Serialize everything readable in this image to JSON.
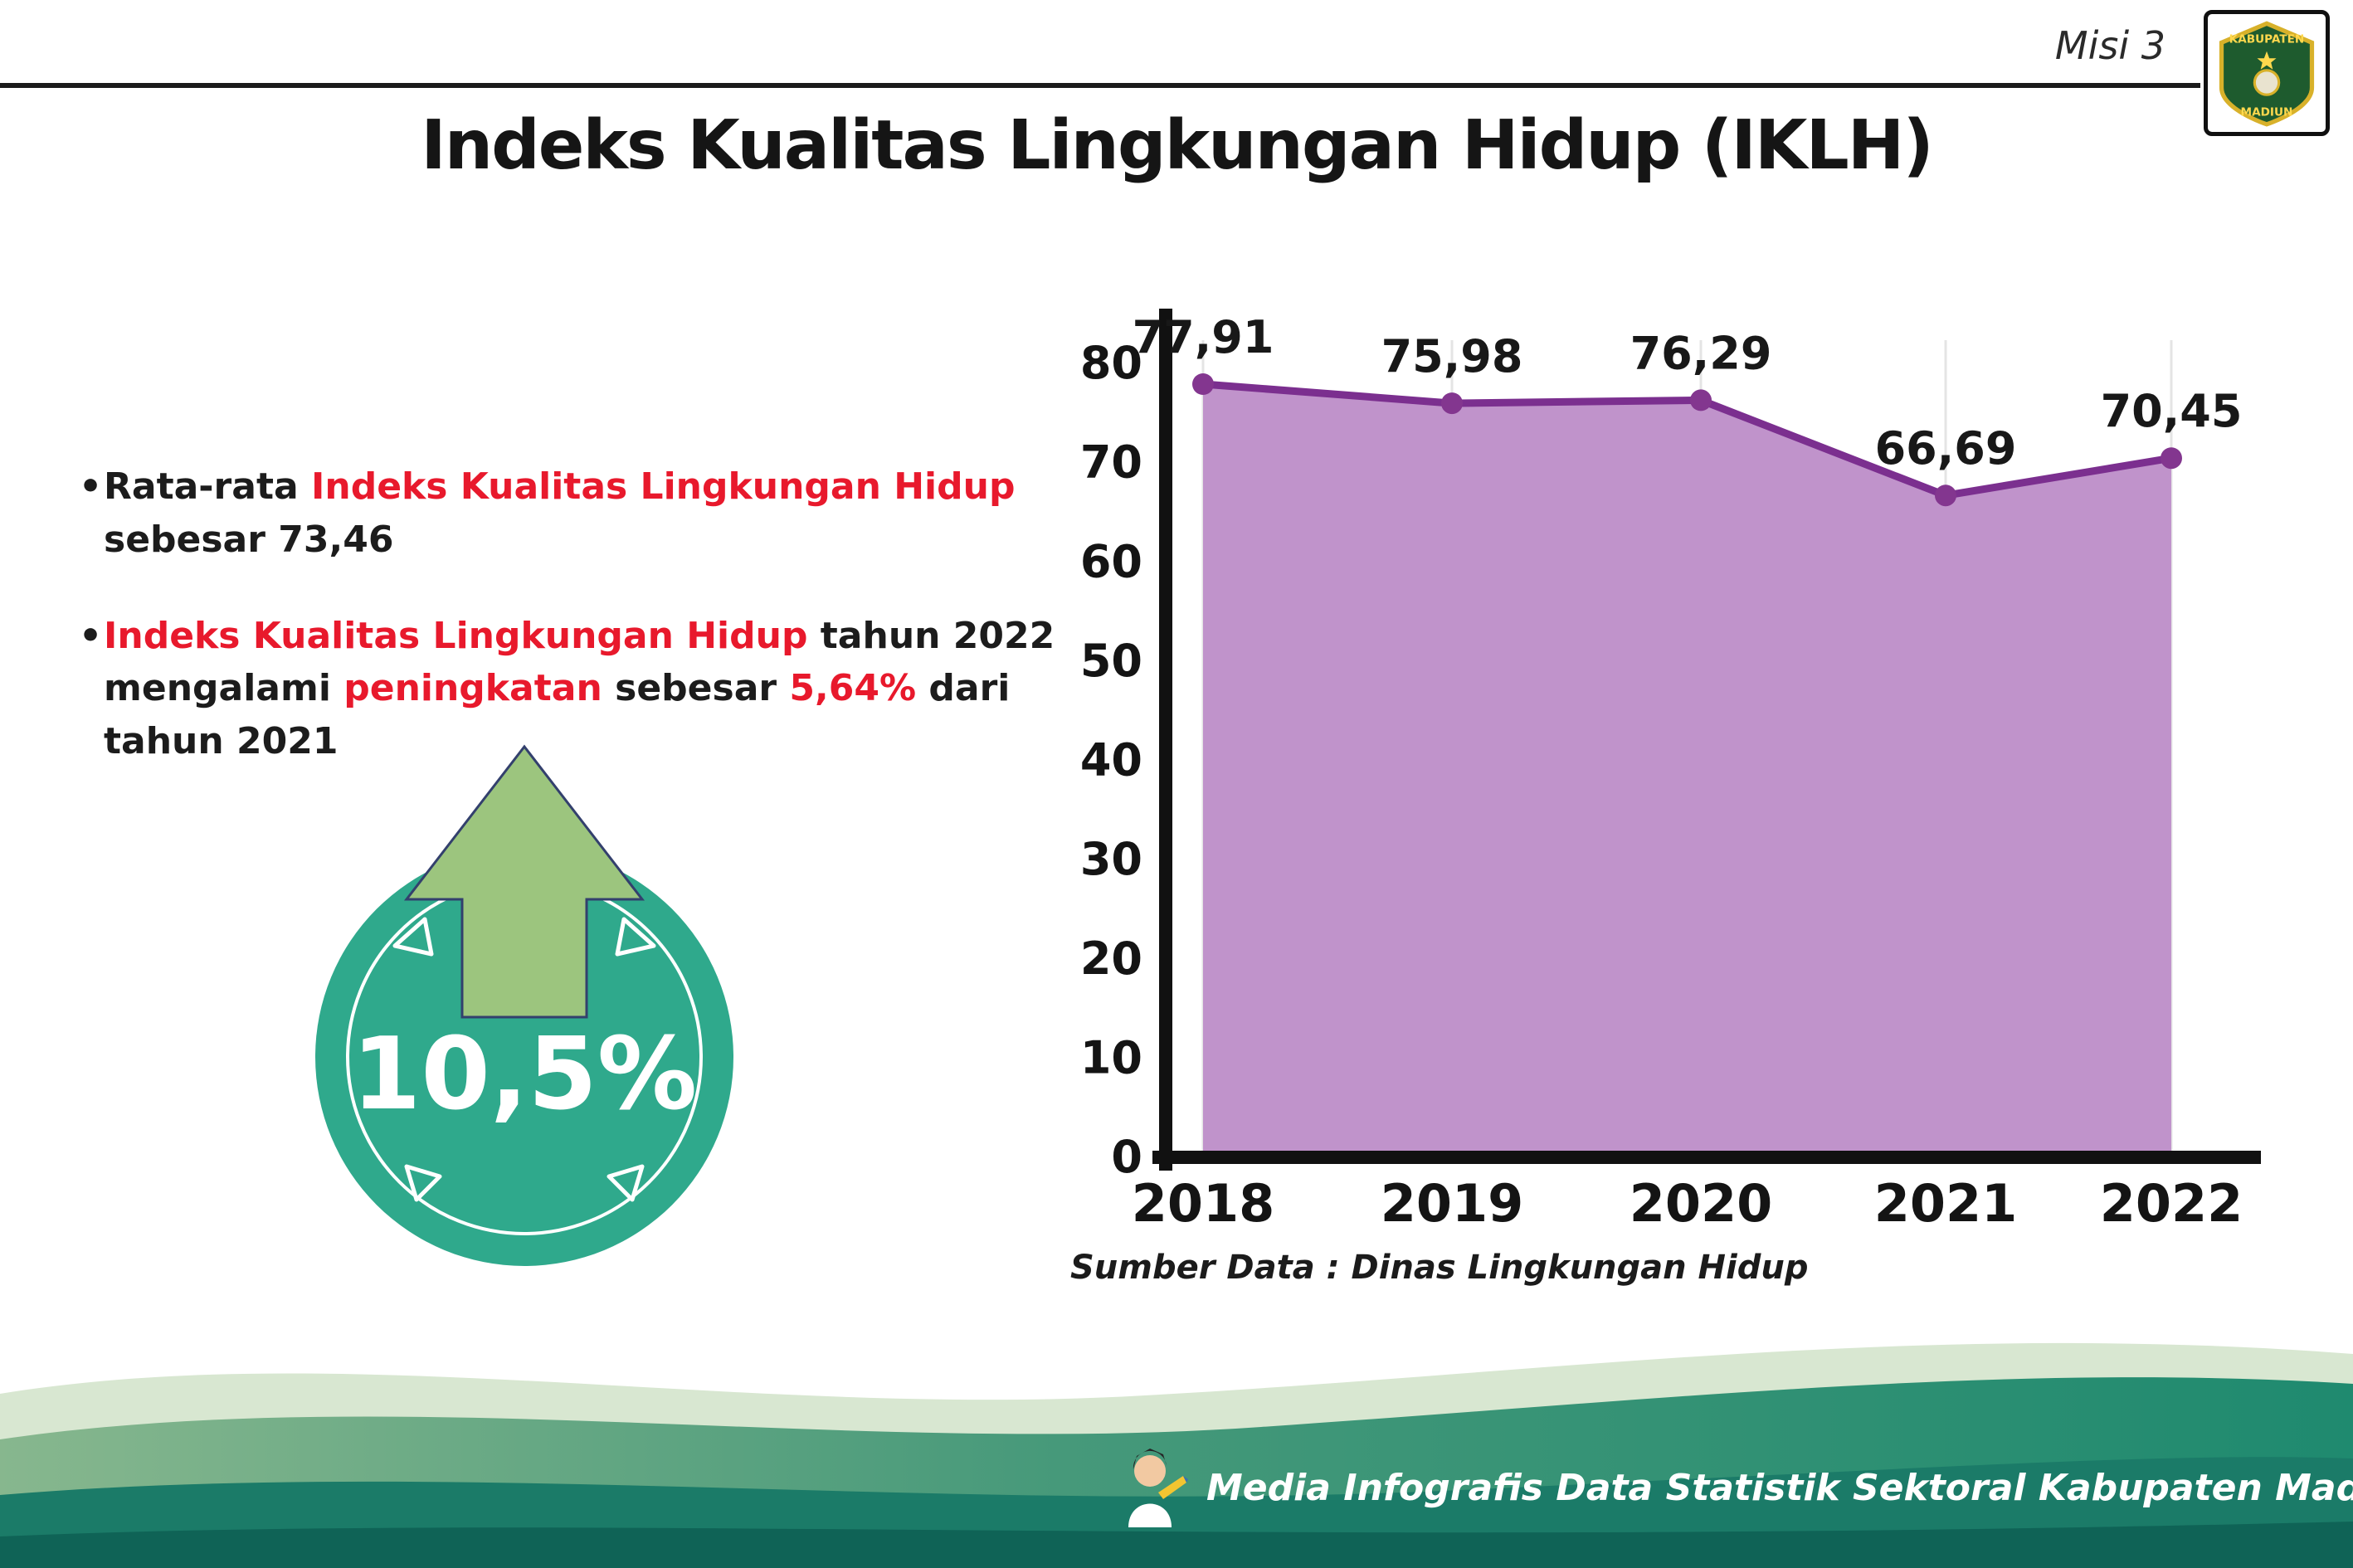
{
  "header": {
    "misi_label": "Misi 3",
    "title": "Indeks Kualitas Lingkungan Hidup (IKLH)",
    "logo": {
      "top_text": "KABUPATEN",
      "bottom_text": "MADIUN"
    }
  },
  "bullets": {
    "marker": "•",
    "b1": {
      "s1": "Rata-rata ",
      "s2": "Indeks Kualitas Lingkungan Hidup",
      "s3": " sebesar 73,46"
    },
    "b2": {
      "s1": "Indeks Kualitas Lingkungan Hidup",
      "s2": " tahun 2022 mengalami ",
      "s3": "peningkatan",
      "s4": " sebesar ",
      "s5": "5,64%",
      "s6": " dari tahun 2021"
    }
  },
  "badge": {
    "value": "10,5%",
    "circle_color": "#2fa98c",
    "arrow_color": "#9cc57e"
  },
  "chart_data": {
    "type": "area",
    "title": "Indeks Kualitas Lingkungan Hidup (IKLH)",
    "categories": [
      "2018",
      "2019",
      "2020",
      "2021",
      "2022"
    ],
    "values": [
      77.91,
      75.98,
      76.29,
      66.69,
      70.45
    ],
    "value_labels": [
      "77,91",
      "75,98",
      "76,29",
      "66,69",
      "70,45"
    ],
    "yticks": [
      0,
      10,
      20,
      30,
      40,
      50,
      60,
      70,
      80
    ],
    "ylim": [
      0,
      80
    ],
    "xlabel": "",
    "ylabel": "",
    "grid": "vertical",
    "legend": "none",
    "area_color": "#c093cb",
    "line_color": "#7b2f8f",
    "dot_color": "#83368f",
    "source": "Sumber Data : Dinas Lingkungan Hidup"
  },
  "source_note": "Sumber Data : Dinas Lingkungan Hidup",
  "footer": {
    "text": "Media Infografis Data Statistik Sektoral Kabupaten Madiun |"
  }
}
